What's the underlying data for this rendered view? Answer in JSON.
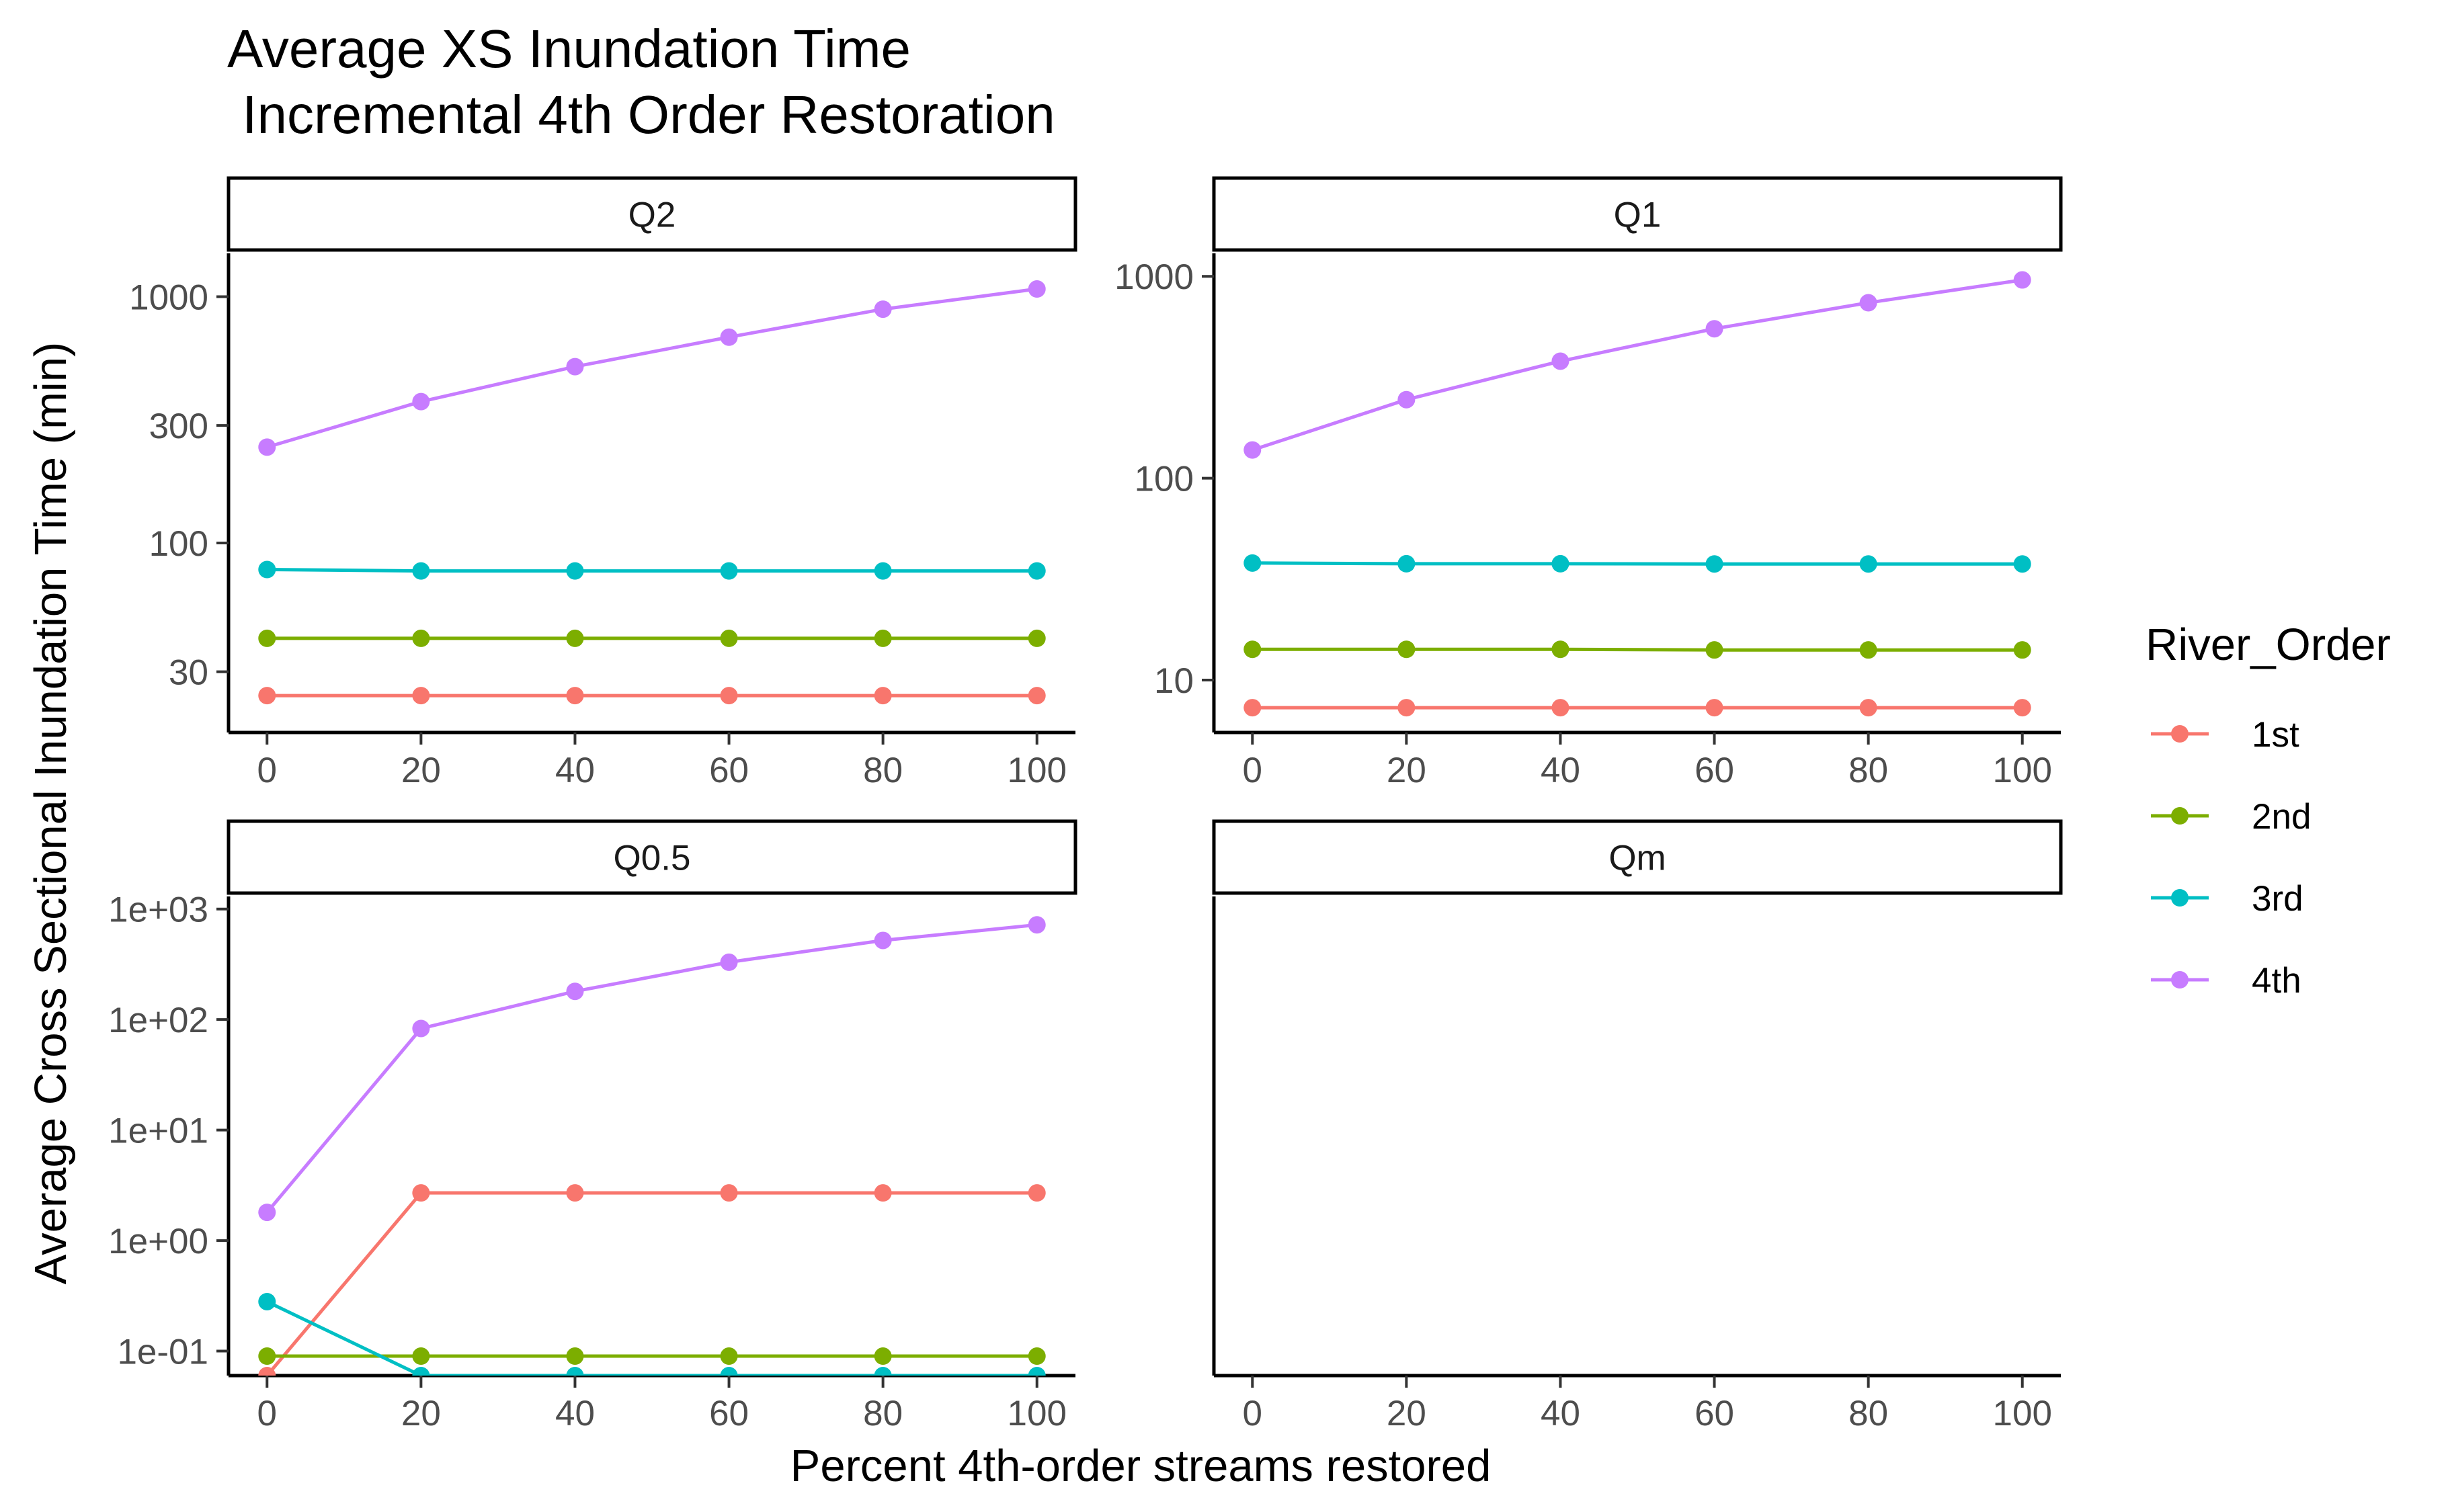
{
  "title_lines": [
    "Average XS Inundation Time",
    " Incremental 4th Order Restoration"
  ],
  "colors": {
    "1st": "#F8766D",
    "2nd": "#7CAE00",
    "3rd": "#00BFC4",
    "4th": "#C77CFF"
  },
  "chart_data": {
    "type": "line",
    "title": "Average XS Inundation Time\n Incremental 4th Order Restoration",
    "xlabel": "Percent 4th-order streams restored",
    "ylabel": "Average Cross Sectional Inundation Time (min)",
    "x": [
      0,
      20,
      40,
      60,
      80,
      100
    ],
    "x_ticks": [
      "0",
      "20",
      "40",
      "60",
      "80",
      "100"
    ],
    "legend": {
      "title": "River_Order",
      "position": "right",
      "entries": [
        "1st",
        "2nd",
        "3rd",
        "4th"
      ]
    },
    "y_scale": "log10",
    "grid": false,
    "facets": [
      {
        "label": "Q2",
        "ylim": [
          17,
          1500
        ],
        "y_ticks": [
          {
            "v": 30,
            "label": "30"
          },
          {
            "v": 100,
            "label": "100"
          },
          {
            "v": 300,
            "label": "300"
          },
          {
            "v": 1000,
            "label": "1000"
          }
        ],
        "series": [
          {
            "name": "1st",
            "values": [
              24,
              24,
              24,
              24,
              24,
              24
            ]
          },
          {
            "name": "2nd",
            "values": [
              41,
              41,
              41,
              41,
              41,
              41
            ]
          },
          {
            "name": "3rd",
            "values": [
              78,
              77,
              77,
              77,
              77,
              77
            ]
          },
          {
            "name": "4th",
            "values": [
              245,
              375,
              520,
              685,
              890,
              1075
            ]
          }
        ]
      },
      {
        "label": "Q1",
        "ylim": [
          5.5,
          1300
        ],
        "y_ticks": [
          {
            "v": 10,
            "label": "10"
          },
          {
            "v": 100,
            "label": "100"
          },
          {
            "v": 1000,
            "label": "1000"
          }
        ],
        "series": [
          {
            "name": "1st",
            "values": [
              7.3,
              7.3,
              7.3,
              7.3,
              7.3,
              7.3
            ]
          },
          {
            "name": "2nd",
            "values": [
              14.2,
              14.2,
              14.2,
              14.1,
              14.1,
              14.1
            ]
          },
          {
            "name": "3rd",
            "values": [
              38,
              37.7,
              37.7,
              37.6,
              37.6,
              37.6
            ]
          },
          {
            "name": "4th",
            "values": [
              138,
              245,
              380,
              550,
              740,
              960
            ]
          }
        ]
      },
      {
        "label": "Q0.5",
        "ylim": [
          0.06,
          1300
        ],
        "y_ticks": [
          {
            "v": 0.1,
            "label": "1e-01"
          },
          {
            "v": 1,
            "label": "1e+00"
          },
          {
            "v": 10,
            "label": "1e+01"
          },
          {
            "v": 100,
            "label": "1e+02"
          },
          {
            "v": 1000,
            "label": "1e+03"
          }
        ],
        "series": [
          {
            "name": "1st",
            "values": [
              0.06,
              2.7,
              2.7,
              2.7,
              2.7,
              2.7
            ]
          },
          {
            "name": "2nd",
            "values": [
              0.09,
              0.09,
              0.09,
              0.09,
              0.09,
              0.09
            ]
          },
          {
            "name": "3rd",
            "values": [
              0.28,
              0.06,
              0.06,
              0.06,
              0.06,
              0.06
            ]
          },
          {
            "name": "4th",
            "values": [
              1.8,
              83,
              180,
              330,
              520,
              720
            ]
          }
        ]
      },
      {
        "label": "Qm",
        "ylim": [
          0.06,
          1300
        ],
        "y_ticks": [],
        "series": []
      }
    ]
  }
}
